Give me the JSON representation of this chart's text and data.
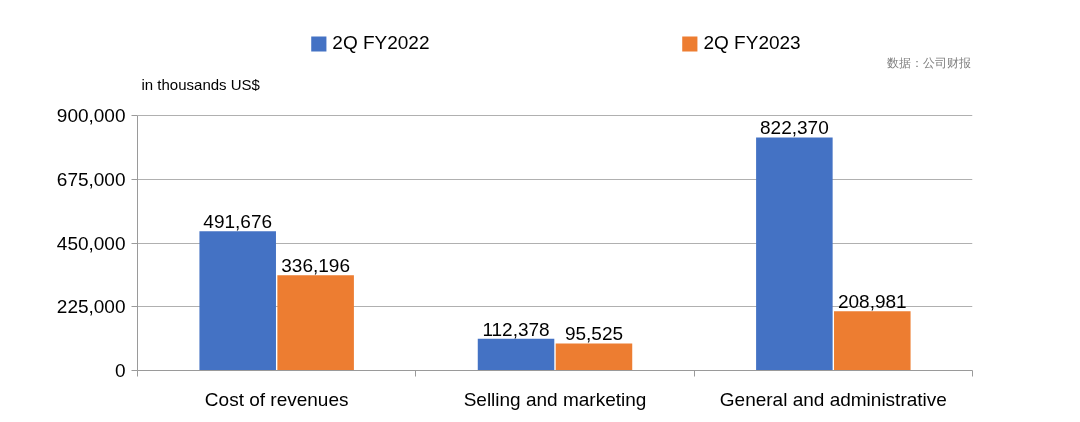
{
  "chart_data": {
    "type": "bar",
    "categories": [
      "Cost of revenues",
      "Selling and marketing",
      "General and administrative"
    ],
    "series": [
      {
        "name": "2Q FY2022",
        "color": "#4472c4",
        "values": [
          491676,
          112378,
          822370
        ],
        "value_labels": [
          "491,676",
          "112,378",
          "822,370"
        ]
      },
      {
        "name": "2Q FY2023",
        "color": "#ed7d31",
        "values": [
          336196,
          95525,
          208981
        ],
        "value_labels": [
          "336,196",
          "95,525",
          "208,981"
        ]
      }
    ],
    "ylabel": "in thousands US$",
    "ylim": [
      0,
      900000
    ],
    "yticks": [
      0,
      {
        "value": 225000,
        "label": "225,000"
      },
      {
        "value": 450000,
        "label": "450,000"
      },
      {
        "value": 675000,
        "label": "675,000"
      },
      {
        "value": 900000,
        "label": "900,000"
      }
    ],
    "grid": "y",
    "legend": "top",
    "annotations": [
      "数据：公司财报"
    ]
  }
}
